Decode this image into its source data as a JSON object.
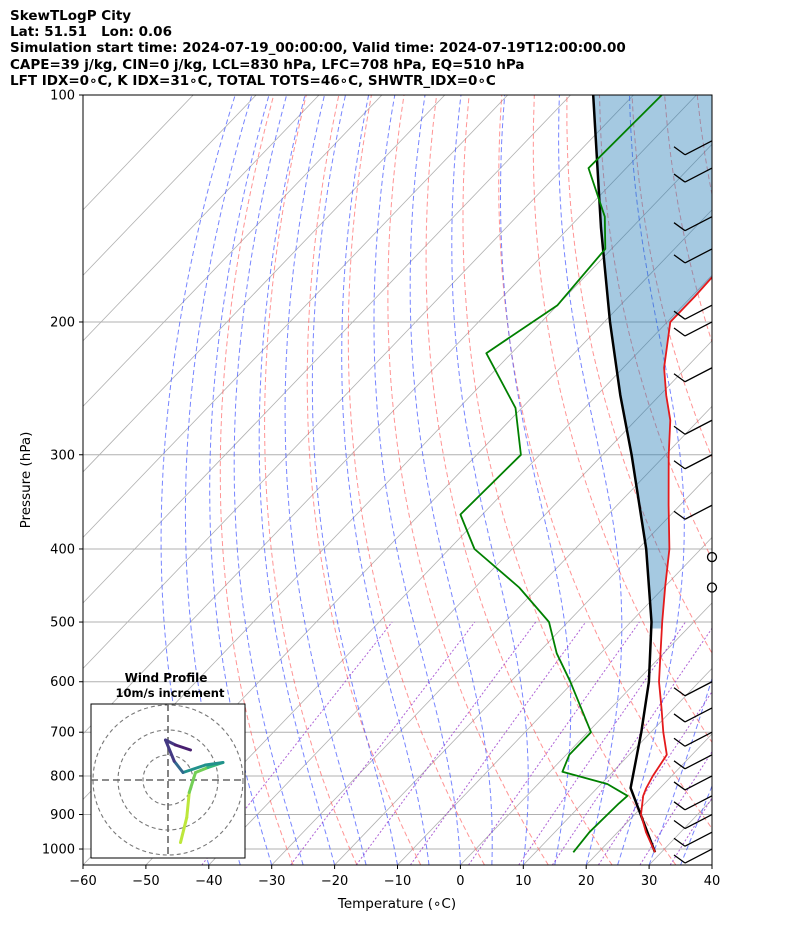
{
  "header": {
    "line1": "SkewTLogP City",
    "line2": "Lat: 51.51   Lon: 0.06",
    "line3": "Simulation start time: 2024-07-19_00:00:00, Valid time: 2024-07-19T12:00:00.00",
    "line4": "CAPE=39 j/kg, CIN=0 j/kg, LCL=830 hPa, LFC=708 hPa, EQ=510 hPa",
    "line5": "LFT IDX=0∘C, K IDX=31∘C, TOTAL TOTS=46∘C, SHWTR_IDX=0∘C"
  },
  "colors": {
    "temperature": "#e41a1c",
    "dewpoint": "#008000",
    "parcel": "#000000",
    "cape_fill": "#1f77b4",
    "dry_adiabat": "#ff5a5a",
    "moist_adiabat": "#4a5cff",
    "mixing_ratio": "#9a3ccc",
    "isotherm": "#b0b0b0",
    "isobar": "#b0b0b0"
  },
  "chart_data": {
    "type": "skew-t log-p",
    "xlabel": "Temperature (∘C)",
    "ylabel": "Pressure (hPa)",
    "xlim": [
      -60,
      40
    ],
    "ylim": [
      1050,
      100
    ],
    "y_scale": "log",
    "x_ticks": [
      -60,
      -50,
      -40,
      -30,
      -20,
      -10,
      0,
      10,
      20,
      30,
      40
    ],
    "x_tick_labels": [
      "−60",
      "−50",
      "−40",
      "−30",
      "−20",
      "−10",
      "0",
      "10",
      "20",
      "30",
      "40"
    ],
    "p_ticks": [
      1000,
      900,
      800,
      700,
      600,
      500,
      400,
      300,
      200,
      100
    ],
    "temperature_profile": [
      {
        "p": 1010,
        "t": 29.0
      },
      {
        "p": 950,
        "t": 24.5
      },
      {
        "p": 900,
        "t": 21.0
      },
      {
        "p": 850,
        "t": 18.5
      },
      {
        "p": 830,
        "t": 17.8
      },
      {
        "p": 800,
        "t": 17.0
      },
      {
        "p": 750,
        "t": 16.0
      },
      {
        "p": 700,
        "t": 12.0
      },
      {
        "p": 650,
        "t": 8.0
      },
      {
        "p": 600,
        "t": 3.6
      },
      {
        "p": 550,
        "t": -0.5
      },
      {
        "p": 500,
        "t": -5.0
      },
      {
        "p": 450,
        "t": -9.8
      },
      {
        "p": 400,
        "t": -15.0
      },
      {
        "p": 350,
        "t": -21.8
      },
      {
        "p": 300,
        "t": -29.5
      },
      {
        "p": 270,
        "t": -34.5
      },
      {
        "p": 250,
        "t": -39.0
      },
      {
        "p": 230,
        "t": -43.5
      },
      {
        "p": 200,
        "t": -49.5
      },
      {
        "p": 185,
        "t": -49.5
      },
      {
        "p": 170,
        "t": -49.8
      },
      {
        "p": 150,
        "t": -51.5
      },
      {
        "p": 140,
        "t": -52.5
      },
      {
        "p": 125,
        "t": -55.5
      },
      {
        "p": 110,
        "t": -59.0
      },
      {
        "p": 100,
        "t": -61.5
      }
    ],
    "dewpoint_profile": [
      {
        "p": 1010,
        "td": 16.0
      },
      {
        "p": 950,
        "td": 15.5
      },
      {
        "p": 870,
        "td": 15.8
      },
      {
        "p": 850,
        "td": 16.0
      },
      {
        "p": 820,
        "td": 11.0
      },
      {
        "p": 790,
        "td": 2.0
      },
      {
        "p": 750,
        "td": 0.5
      },
      {
        "p": 700,
        "td": 0.5
      },
      {
        "p": 600,
        "td": -10.5
      },
      {
        "p": 550,
        "td": -17.0
      },
      {
        "p": 500,
        "td": -23.0
      },
      {
        "p": 450,
        "td": -33.0
      },
      {
        "p": 400,
        "td": -46.0
      },
      {
        "p": 360,
        "td": -53.5
      },
      {
        "p": 300,
        "td": -53.0
      },
      {
        "p": 260,
        "td": -61.0
      },
      {
        "p": 220,
        "td": -74.0
      },
      {
        "p": 190,
        "td": -70.0
      },
      {
        "p": 160,
        "td": -71.0
      },
      {
        "p": 145,
        "td": -76.0
      },
      {
        "p": 125,
        "td": -86.0
      },
      {
        "p": 100,
        "td": -85.5
      }
    ],
    "parcel_profile": [
      {
        "p": 1010,
        "t": 29.0
      },
      {
        "p": 830,
        "t": 15.3
      },
      {
        "p": 700,
        "t": 8.5
      },
      {
        "p": 600,
        "t": 2.0
      },
      {
        "p": 500,
        "t": -6.7
      },
      {
        "p": 400,
        "t": -18.7
      },
      {
        "p": 300,
        "t": -35.4
      },
      {
        "p": 250,
        "t": -46.3
      },
      {
        "p": 200,
        "t": -59.1
      },
      {
        "p": 150,
        "t": -74.9
      },
      {
        "p": 100,
        "t": -96.4
      }
    ],
    "wind_barbs": [
      {
        "p": 1000,
        "type": "barb"
      },
      {
        "p": 950,
        "type": "barb"
      },
      {
        "p": 900,
        "type": "barb"
      },
      {
        "p": 850,
        "type": "barb"
      },
      {
        "p": 800,
        "type": "barb"
      },
      {
        "p": 750,
        "type": "barb"
      },
      {
        "p": 700,
        "type": "barb"
      },
      {
        "p": 650,
        "type": "barb"
      },
      {
        "p": 600,
        "type": "barb"
      },
      {
        "p": 450,
        "type": "calm"
      },
      {
        "p": 410,
        "type": "calm"
      },
      {
        "p": 350,
        "type": "barb"
      },
      {
        "p": 300,
        "type": "barb"
      },
      {
        "p": 270,
        "type": "barb"
      },
      {
        "p": 230,
        "type": "barb"
      },
      {
        "p": 200,
        "type": "barb"
      },
      {
        "p": 190,
        "type": "barb"
      },
      {
        "p": 160,
        "type": "barb"
      },
      {
        "p": 145,
        "type": "barb"
      },
      {
        "p": 125,
        "type": "barb"
      },
      {
        "p": 115,
        "type": "barb"
      }
    ],
    "inset": {
      "title": "Wind Profile",
      "subtitle": "10m/s increment",
      "rings": 3,
      "hodograph": [
        {
          "u": 1.0,
          "v": -5.0
        },
        {
          "u": 1.5,
          "v": -3.0
        },
        {
          "u": 1.7,
          "v": -1.0
        },
        {
          "u": 2.2,
          "v": 0.6
        },
        {
          "u": 3.2,
          "v": 1.0
        },
        {
          "u": 4.4,
          "v": 1.4
        },
        {
          "u": 3.0,
          "v": 1.2
        },
        {
          "u": 1.2,
          "v": 0.6
        },
        {
          "u": 0.5,
          "v": 1.5
        },
        {
          "u": -0.2,
          "v": 3.2
        },
        {
          "u": 0.6,
          "v": 2.8
        },
        {
          "u": 1.8,
          "v": 2.4
        }
      ]
    }
  }
}
